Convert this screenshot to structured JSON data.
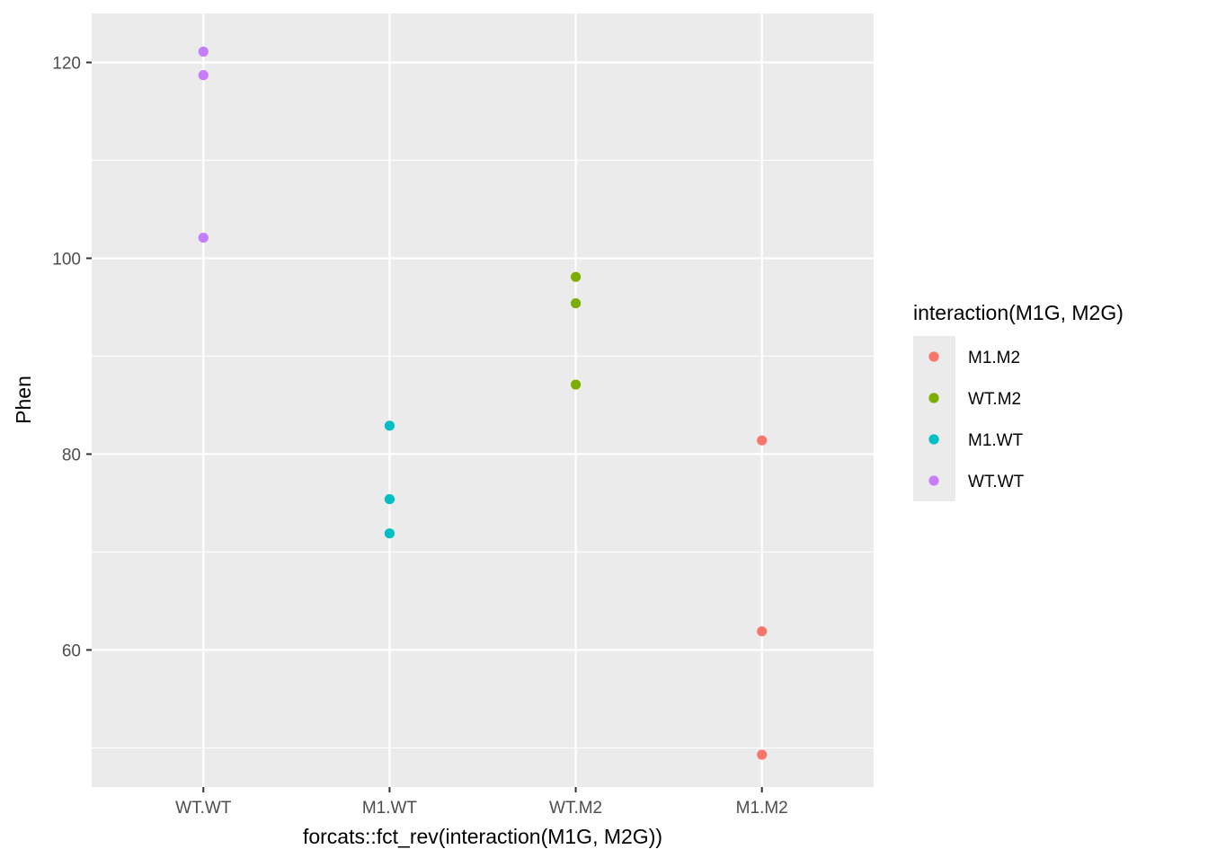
{
  "chart_data": {
    "type": "scatter",
    "title": "",
    "xlabel": "forcats::fct_rev(interaction(M1G, M2G))",
    "ylabel": "Phen",
    "categories": [
      "WT.WT",
      "M1.WT",
      "WT.M2",
      "M1.M2"
    ],
    "ylim": [
      46,
      125
    ],
    "yticks": [
      60,
      80,
      100,
      120
    ],
    "grid": true,
    "legend": {
      "title": "interaction(M1G, M2G)",
      "position": "right",
      "entries": [
        "M1.M2",
        "WT.M2",
        "M1.WT",
        "WT.WT"
      ]
    },
    "series": [
      {
        "name": "M1.M2",
        "color": "#F8766D",
        "x": [
          "M1.M2",
          "M1.M2",
          "M1.M2"
        ],
        "y": [
          81.4,
          61.9,
          49.3
        ]
      },
      {
        "name": "WT.M2",
        "color": "#7CAE00",
        "x": [
          "WT.M2",
          "WT.M2",
          "WT.M2"
        ],
        "y": [
          98.1,
          95.4,
          87.1
        ]
      },
      {
        "name": "M1.WT",
        "color": "#00BFC4",
        "x": [
          "M1.WT",
          "M1.WT",
          "M1.WT"
        ],
        "y": [
          82.9,
          75.4,
          71.9
        ]
      },
      {
        "name": "WT.WT",
        "color": "#C77CFF",
        "x": [
          "WT.WT",
          "WT.WT",
          "WT.WT"
        ],
        "y": [
          121.1,
          118.7,
          102.1
        ]
      }
    ]
  }
}
